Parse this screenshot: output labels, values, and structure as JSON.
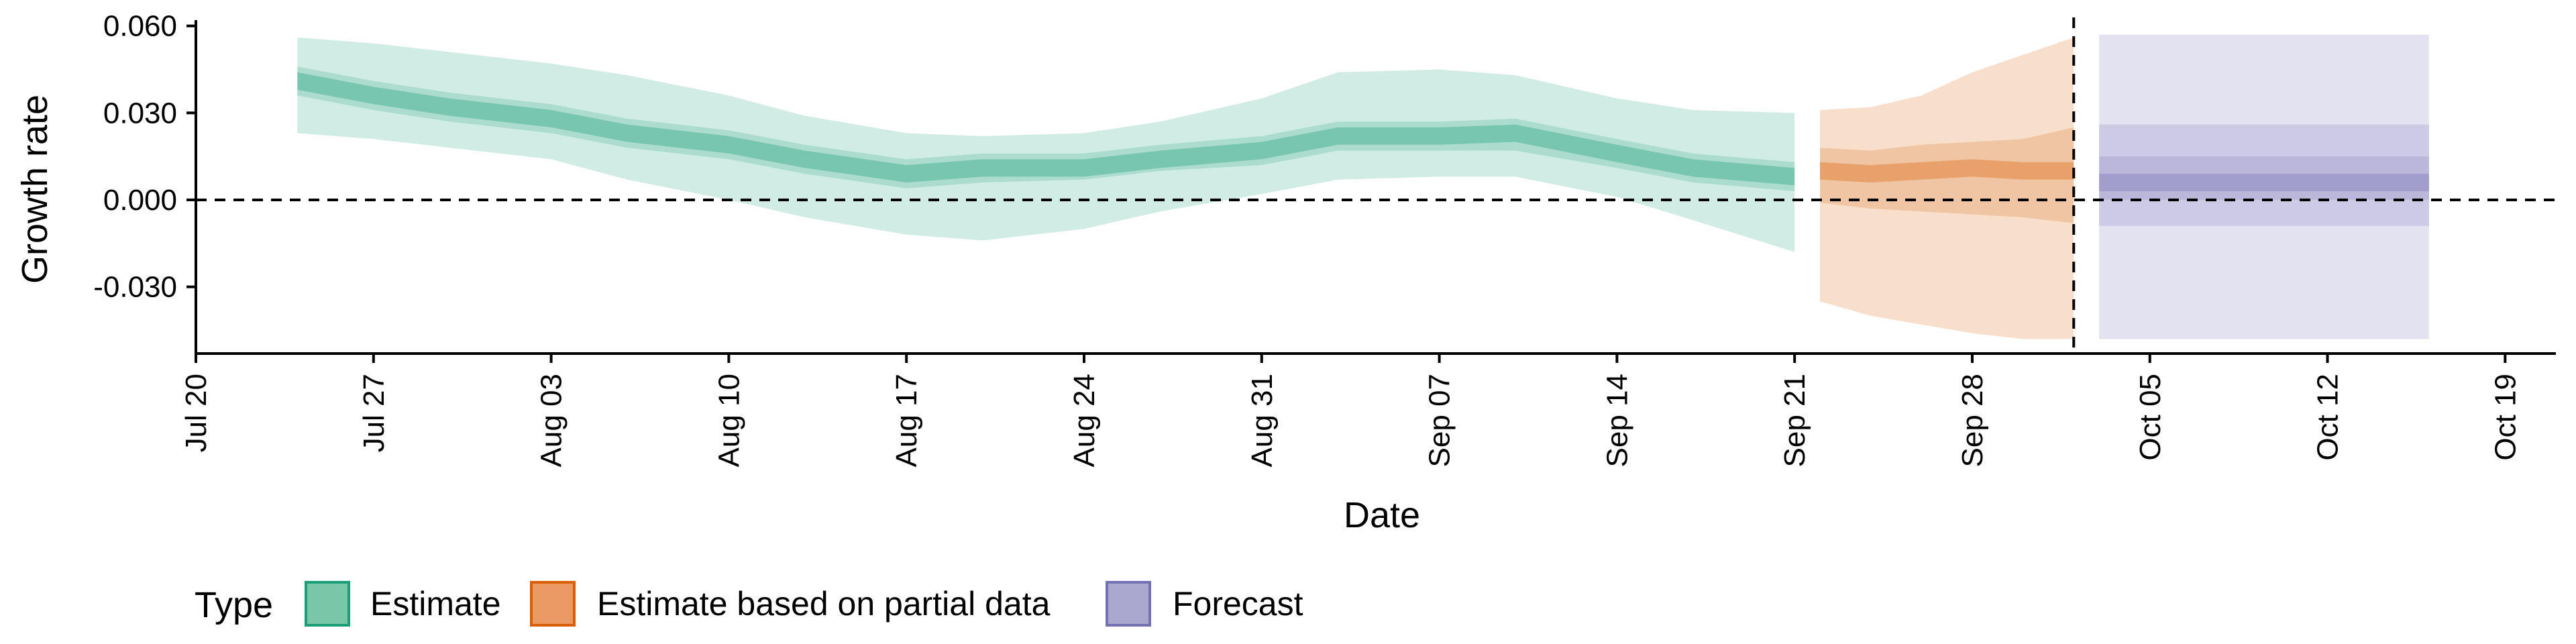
{
  "chart_data": {
    "type": "area",
    "xlabel": "Date",
    "ylabel": "Growth rate",
    "xlim": [
      "2020-07-20",
      "2020-10-21"
    ],
    "ylim": [
      -0.053,
      0.062
    ],
    "x_ticks": [
      "2020-07-20",
      "2020-07-27",
      "2020-08-03",
      "2020-08-10",
      "2020-08-17",
      "2020-08-24",
      "2020-08-31",
      "2020-09-07",
      "2020-09-14",
      "2020-09-21",
      "2020-09-28",
      "2020-10-05",
      "2020-10-12",
      "2020-10-19"
    ],
    "x_tick_labels": [
      "Jul 20",
      "Jul 27",
      "Aug 03",
      "Aug 10",
      "Aug 17",
      "Aug 24",
      "Aug 31",
      "Sep 07",
      "Sep 14",
      "Sep 21",
      "Sep 28",
      "Oct 05",
      "Oct 12",
      "Oct 19"
    ],
    "y_ticks": [
      -0.03,
      0.0,
      0.03,
      0.06
    ],
    "y_tick_labels": [
      "-0.030",
      "0.000",
      "0.030",
      "0.060"
    ],
    "reference_lines": {
      "horizontal_y": 0.0,
      "vertical_x": "2020-10-02"
    },
    "legend": {
      "title": "Type",
      "position": "bottom-left",
      "items": [
        {
          "label": "Estimate",
          "fill": "#7ac6a9",
          "stroke": "#1b9e77"
        },
        {
          "label": "Estimate based on partial data",
          "fill": "#ea9a62",
          "stroke": "#d95f02"
        },
        {
          "label": "Forecast",
          "fill": "#aba8d0",
          "stroke": "#7570b3"
        }
      ]
    },
    "series": [
      {
        "name": "Estimate",
        "color": "#1b9e77",
        "points": [
          {
            "x": "2020-07-24",
            "mid": 0.041,
            "l50": 0.036,
            "u50": 0.046,
            "l90": 0.023,
            "u90": 0.056
          },
          {
            "x": "2020-07-27",
            "mid": 0.036,
            "l50": 0.031,
            "u50": 0.041,
            "l90": 0.021,
            "u90": 0.054
          },
          {
            "x": "2020-07-30",
            "mid": 0.032,
            "l50": 0.027,
            "u50": 0.037,
            "l90": 0.018,
            "u90": 0.051
          },
          {
            "x": "2020-08-03",
            "mid": 0.028,
            "l50": 0.023,
            "u50": 0.033,
            "l90": 0.014,
            "u90": 0.047
          },
          {
            "x": "2020-08-06",
            "mid": 0.023,
            "l50": 0.018,
            "u50": 0.028,
            "l90": 0.007,
            "u90": 0.043
          },
          {
            "x": "2020-08-10",
            "mid": 0.019,
            "l50": 0.014,
            "u50": 0.024,
            "l90": 0.0,
            "u90": 0.036
          },
          {
            "x": "2020-08-13",
            "mid": 0.014,
            "l50": 0.009,
            "u50": 0.019,
            "l90": -0.006,
            "u90": 0.029
          },
          {
            "x": "2020-08-17",
            "mid": 0.009,
            "l50": 0.004,
            "u50": 0.014,
            "l90": -0.012,
            "u90": 0.023
          },
          {
            "x": "2020-08-20",
            "mid": 0.011,
            "l50": 0.006,
            "u50": 0.016,
            "l90": -0.014,
            "u90": 0.022
          },
          {
            "x": "2020-08-24",
            "mid": 0.011,
            "l50": 0.007,
            "u50": 0.016,
            "l90": -0.01,
            "u90": 0.023
          },
          {
            "x": "2020-08-27",
            "mid": 0.014,
            "l50": 0.01,
            "u50": 0.019,
            "l90": -0.004,
            "u90": 0.027
          },
          {
            "x": "2020-08-31",
            "mid": 0.017,
            "l50": 0.012,
            "u50": 0.022,
            "l90": 0.002,
            "u90": 0.035
          },
          {
            "x": "2020-09-03",
            "mid": 0.022,
            "l50": 0.017,
            "u50": 0.027,
            "l90": 0.007,
            "u90": 0.044
          },
          {
            "x": "2020-09-07",
            "mid": 0.022,
            "l50": 0.017,
            "u50": 0.027,
            "l90": 0.008,
            "u90": 0.045
          },
          {
            "x": "2020-09-10",
            "mid": 0.023,
            "l50": 0.017,
            "u50": 0.028,
            "l90": 0.008,
            "u90": 0.043
          },
          {
            "x": "2020-09-14",
            "mid": 0.016,
            "l50": 0.011,
            "u50": 0.021,
            "l90": 0.001,
            "u90": 0.035
          },
          {
            "x": "2020-09-17",
            "mid": 0.011,
            "l50": 0.006,
            "u50": 0.016,
            "l90": -0.007,
            "u90": 0.031
          },
          {
            "x": "2020-09-21",
            "mid": 0.008,
            "l50": 0.003,
            "u50": 0.013,
            "l90": -0.018,
            "u90": 0.03
          }
        ]
      },
      {
        "name": "Estimate based on partial data",
        "color": "#d95f02",
        "points": [
          {
            "x": "2020-09-22",
            "mid": 0.01,
            "l50": -0.001,
            "u50": 0.018,
            "l90": -0.035,
            "u90": 0.031
          },
          {
            "x": "2020-09-24",
            "mid": 0.009,
            "l50": -0.003,
            "u50": 0.017,
            "l90": -0.04,
            "u90": 0.032
          },
          {
            "x": "2020-09-26",
            "mid": 0.01,
            "l50": -0.004,
            "u50": 0.019,
            "l90": -0.043,
            "u90": 0.036
          },
          {
            "x": "2020-09-28",
            "mid": 0.011,
            "l50": -0.005,
            "u50": 0.02,
            "l90": -0.046,
            "u90": 0.044
          },
          {
            "x": "2020-09-30",
            "mid": 0.01,
            "l50": -0.006,
            "u50": 0.021,
            "l90": -0.048,
            "u90": 0.05
          },
          {
            "x": "2020-10-02",
            "mid": 0.01,
            "l50": -0.008,
            "u50": 0.025,
            "l90": -0.048,
            "u90": 0.056
          }
        ]
      },
      {
        "name": "Forecast",
        "color": "#7570b3",
        "points": [
          {
            "x": "2020-10-03",
            "mid": 0.006,
            "l50": 0.0,
            "u50": 0.015,
            "l70": -0.009,
            "u70": 0.026,
            "l90": -0.048,
            "u90": 0.057
          },
          {
            "x": "2020-10-16",
            "mid": 0.006,
            "l50": 0.0,
            "u50": 0.015,
            "l70": -0.009,
            "u70": 0.026,
            "l90": -0.048,
            "u90": 0.057
          }
        ]
      }
    ]
  }
}
